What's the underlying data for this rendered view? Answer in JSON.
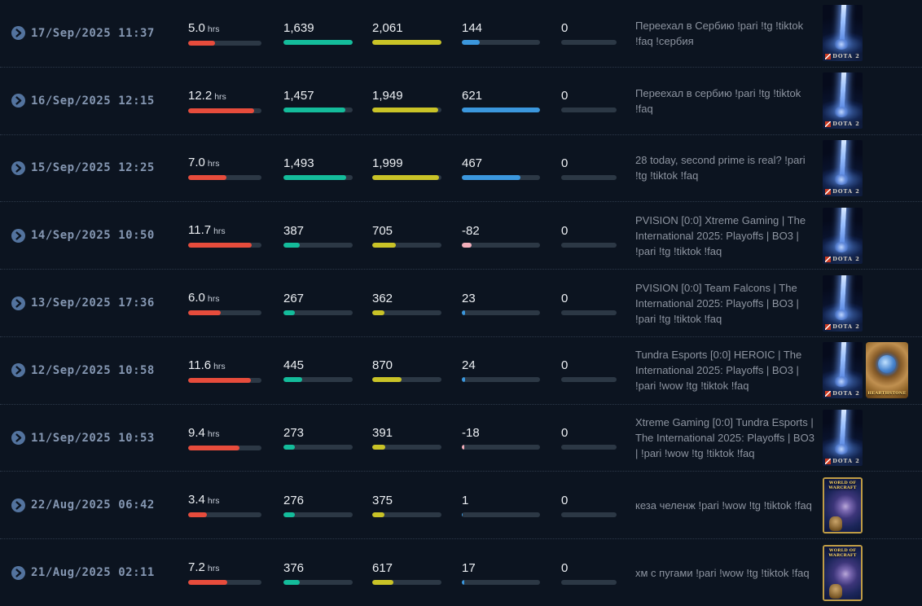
{
  "colors": {
    "background": "#0c1420",
    "bar_red": "#e74c3c",
    "bar_teal": "#14bc9b",
    "bar_yellow": "#c9c327",
    "bar_blue": "#3b97dd",
    "bar_pink": "#f2aeba",
    "bar_track": "#2c3845",
    "date_text": "#8597b2",
    "number_text": "#edf0f4",
    "title_text": "#8d94a0",
    "expander_circle": "#53739e"
  },
  "games": {
    "dota2": {
      "label": "DOTA 2"
    },
    "hearthstone": {
      "label": "HEARTHSTONE"
    },
    "wow": {
      "label": "WORLD OF WARCRAFT"
    }
  },
  "table": {
    "hours_unit": "hrs",
    "rows": [
      {
        "date": "17/Sep/2025",
        "time": "11:37",
        "hours": "5.0",
        "hours_pct": 37,
        "avg_viewers": "1,639",
        "avg_pct": 100,
        "peak_viewers": "2,061",
        "peak_pct": 100,
        "followers": "144",
        "followers_pct": 23,
        "views": "0",
        "views_pct": 0,
        "title": "Переехал в Сербию !pari !tg !tiktok !faq !сербия",
        "games": [
          "dota2"
        ]
      },
      {
        "date": "16/Sep/2025",
        "time": "12:15",
        "hours": "12.2",
        "hours_pct": 90,
        "avg_viewers": "1,457",
        "avg_pct": 89,
        "peak_viewers": "1,949",
        "peak_pct": 95,
        "followers": "621",
        "followers_pct": 100,
        "views": "0",
        "views_pct": 0,
        "title": "Переехал в сербию !pari !tg !tiktok !faq",
        "games": [
          "dota2"
        ]
      },
      {
        "date": "15/Sep/2025",
        "time": "12:25",
        "hours": "7.0",
        "hours_pct": 52,
        "avg_viewers": "1,493",
        "avg_pct": 91,
        "peak_viewers": "1,999",
        "peak_pct": 97,
        "followers": "467",
        "followers_pct": 75,
        "views": "0",
        "views_pct": 0,
        "title": "28 today, second prime is real? !pari !tg !tiktok !faq",
        "games": [
          "dota2"
        ]
      },
      {
        "date": "14/Sep/2025",
        "time": "10:50",
        "hours": "11.7",
        "hours_pct": 87,
        "avg_viewers": "387",
        "avg_pct": 24,
        "peak_viewers": "705",
        "peak_pct": 34,
        "followers": "-82",
        "followers_pct": 13,
        "views": "0",
        "views_pct": 0,
        "title": "PVISION [0:0] Xtreme Gaming | The International 2025: Playoffs | BO3 | !pari !tg !tiktok !faq",
        "games": [
          "dota2"
        ]
      },
      {
        "date": "13/Sep/2025",
        "time": "17:36",
        "hours": "6.0",
        "hours_pct": 44,
        "avg_viewers": "267",
        "avg_pct": 16,
        "peak_viewers": "362",
        "peak_pct": 18,
        "followers": "23",
        "followers_pct": 4,
        "views": "0",
        "views_pct": 0,
        "title": "PVISION [0:0] Team Falcons | The International 2025: Playoffs | BO3 | !pari !tg !tiktok !faq",
        "games": [
          "dota2"
        ]
      },
      {
        "date": "12/Sep/2025",
        "time": "10:58",
        "hours": "11.6",
        "hours_pct": 86,
        "avg_viewers": "445",
        "avg_pct": 27,
        "peak_viewers": "870",
        "peak_pct": 42,
        "followers": "24",
        "followers_pct": 4,
        "views": "0",
        "views_pct": 0,
        "title": "Tundra Esports [0:0] HEROIC | The International 2025: Playoffs | BO3 | !pari !wow !tg !tiktok !faq",
        "games": [
          "dota2",
          "hearthstone"
        ]
      },
      {
        "date": "11/Sep/2025",
        "time": "10:53",
        "hours": "9.4",
        "hours_pct": 70,
        "avg_viewers": "273",
        "avg_pct": 17,
        "peak_viewers": "391",
        "peak_pct": 19,
        "followers": "-18",
        "followers_pct": 3,
        "views": "0",
        "views_pct": 0,
        "title": "Xtreme Gaming [0:0] Tundra Esports | The International 2025: Playoffs | BO3 | !pari !wow !tg !tiktok !faq",
        "games": [
          "dota2"
        ]
      },
      {
        "date": "22/Aug/2025",
        "time": "06:42",
        "hours": "3.4",
        "hours_pct": 25,
        "avg_viewers": "276",
        "avg_pct": 17,
        "peak_viewers": "375",
        "peak_pct": 18,
        "followers": "1",
        "followers_pct": 1,
        "views": "0",
        "views_pct": 0,
        "title": "кеза челенж !pari !wow !tg !tiktok !faq",
        "games": [
          "wow"
        ]
      },
      {
        "date": "21/Aug/2025",
        "time": "02:11",
        "hours": "7.2",
        "hours_pct": 53,
        "avg_viewers": "376",
        "avg_pct": 23,
        "peak_viewers": "617",
        "peak_pct": 30,
        "followers": "17",
        "followers_pct": 3,
        "views": "0",
        "views_pct": 0,
        "title": "хм с пугами !pari !wow !tg !tiktok !faq",
        "games": [
          "wow"
        ]
      }
    ]
  }
}
